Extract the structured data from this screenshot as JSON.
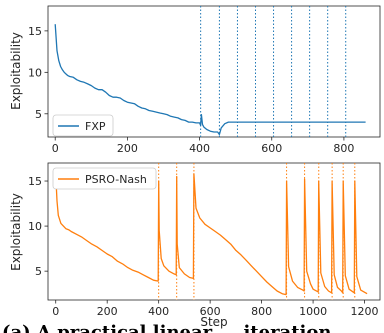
{
  "caption": "(a) A practical linear ... iteration",
  "chart_data": [
    {
      "type": "line",
      "xlabel": "",
      "ylabel": "Exploitability",
      "xlim": [
        -20,
        900
      ],
      "ylim": [
        2.2,
        18
      ],
      "xticks": [
        "0",
        "200",
        "400",
        "600",
        "800"
      ],
      "xtick_values": [
        0,
        200,
        400,
        600,
        800
      ],
      "yticks": [
        "5",
        "10",
        "15"
      ],
      "ytick_values": [
        5,
        10,
        15
      ],
      "legend_position": "bottom-left",
      "vline_style": "dotted",
      "series": [
        {
          "name": "FXP",
          "color": "#1f77b4",
          "x": [
            0,
            5,
            10,
            15,
            20,
            25,
            30,
            35,
            40,
            50,
            60,
            70,
            80,
            90,
            100,
            110,
            120,
            130,
            140,
            150,
            160,
            170,
            180,
            190,
            200,
            210,
            220,
            230,
            240,
            250,
            260,
            270,
            280,
            290,
            300,
            310,
            320,
            330,
            340,
            350,
            360,
            370,
            380,
            390,
            400,
            403,
            405,
            408,
            412,
            420,
            430,
            440,
            450,
            455,
            460,
            470,
            480,
            490,
            500,
            550,
            600,
            650,
            700,
            750,
            800,
            860
          ],
          "y": [
            15.8,
            12.6,
            11.4,
            10.7,
            10.3,
            10.0,
            9.8,
            9.6,
            9.5,
            9.4,
            9.1,
            8.9,
            8.8,
            8.6,
            8.4,
            8.1,
            7.9,
            7.9,
            7.6,
            7.2,
            7.0,
            7.0,
            6.9,
            6.6,
            6.4,
            6.3,
            6.2,
            5.9,
            5.7,
            5.6,
            5.4,
            5.3,
            5.2,
            5.1,
            5.0,
            4.9,
            4.7,
            4.6,
            4.5,
            4.3,
            4.2,
            4.0,
            4.0,
            3.9,
            3.9,
            3.6,
            4.9,
            3.7,
            3.4,
            3.1,
            2.9,
            2.8,
            2.8,
            2.5,
            3.3,
            3.8,
            4.0,
            4.0,
            4.0,
            4.0,
            4.0,
            4.0,
            4.0,
            4.0,
            4.0,
            4.0
          ]
        }
      ],
      "vlines": [
        403,
        455,
        505,
        555,
        605,
        655,
        705,
        755,
        805
      ]
    },
    {
      "type": "line",
      "xlabel": "Step",
      "ylabel": "Exploitability",
      "xlim": [
        -30,
        1260
      ],
      "ylim": [
        1.8,
        17
      ],
      "xticks": [
        "0",
        "200",
        "400",
        "600",
        "800",
        "1000",
        "1200"
      ],
      "xtick_values": [
        0,
        200,
        400,
        600,
        800,
        1000,
        1200
      ],
      "yticks": [
        "5",
        "10",
        "15"
      ],
      "ytick_values": [
        5,
        10,
        15
      ],
      "legend_position": "top-left",
      "vline_style": "dotted",
      "series": [
        {
          "name": "PSRO-Nash",
          "color": "#ff7f0e",
          "x": [
            0,
            5,
            10,
            20,
            30,
            40,
            50,
            60,
            80,
            100,
            120,
            140,
            160,
            180,
            200,
            220,
            240,
            260,
            280,
            300,
            320,
            340,
            360,
            380,
            398,
            400,
            402,
            410,
            420,
            440,
            460,
            468,
            470,
            472,
            480,
            500,
            520,
            535,
            537,
            545,
            560,
            580,
            600,
            620,
            640,
            660,
            680,
            700,
            720,
            740,
            760,
            780,
            800,
            820,
            840,
            860,
            880,
            895,
            897,
            905,
            920,
            940,
            960,
            965,
            967,
            975,
            990,
            1000,
            1020,
            1022,
            1030,
            1045,
            1060,
            1072,
            1074,
            1082,
            1095,
            1110,
            1115,
            1117,
            1125,
            1140,
            1160,
            1162,
            1170,
            1185,
            1210
          ],
          "y": [
            15.8,
            12.8,
            11.2,
            10.3,
            10.0,
            9.7,
            9.6,
            9.4,
            9.1,
            8.8,
            8.4,
            8.0,
            7.7,
            7.3,
            6.9,
            6.6,
            6.1,
            5.8,
            5.4,
            5.1,
            4.9,
            4.6,
            4.3,
            4.0,
            3.9,
            15.0,
            9.5,
            6.4,
            5.6,
            5.0,
            4.7,
            4.6,
            15.5,
            8.0,
            5.4,
            4.7,
            4.3,
            4.2,
            15.8,
            12.0,
            10.9,
            10.2,
            9.8,
            9.4,
            9.0,
            8.5,
            8.0,
            7.3,
            6.8,
            6.2,
            5.6,
            5.0,
            4.4,
            3.8,
            3.3,
            2.8,
            2.5,
            2.4,
            15.0,
            5.5,
            3.9,
            3.2,
            2.9,
            2.8,
            15.2,
            5.0,
            3.6,
            3.0,
            2.7,
            15.0,
            4.8,
            3.3,
            2.8,
            2.6,
            15.0,
            4.6,
            3.2,
            2.8,
            2.6,
            15.0,
            4.5,
            3.0,
            2.6,
            15.0,
            4.4,
            2.9,
            2.5
          ]
        }
      ],
      "vlines": [
        400,
        470,
        537,
        897,
        967,
        1022,
        1074,
        1117,
        1162
      ]
    }
  ]
}
